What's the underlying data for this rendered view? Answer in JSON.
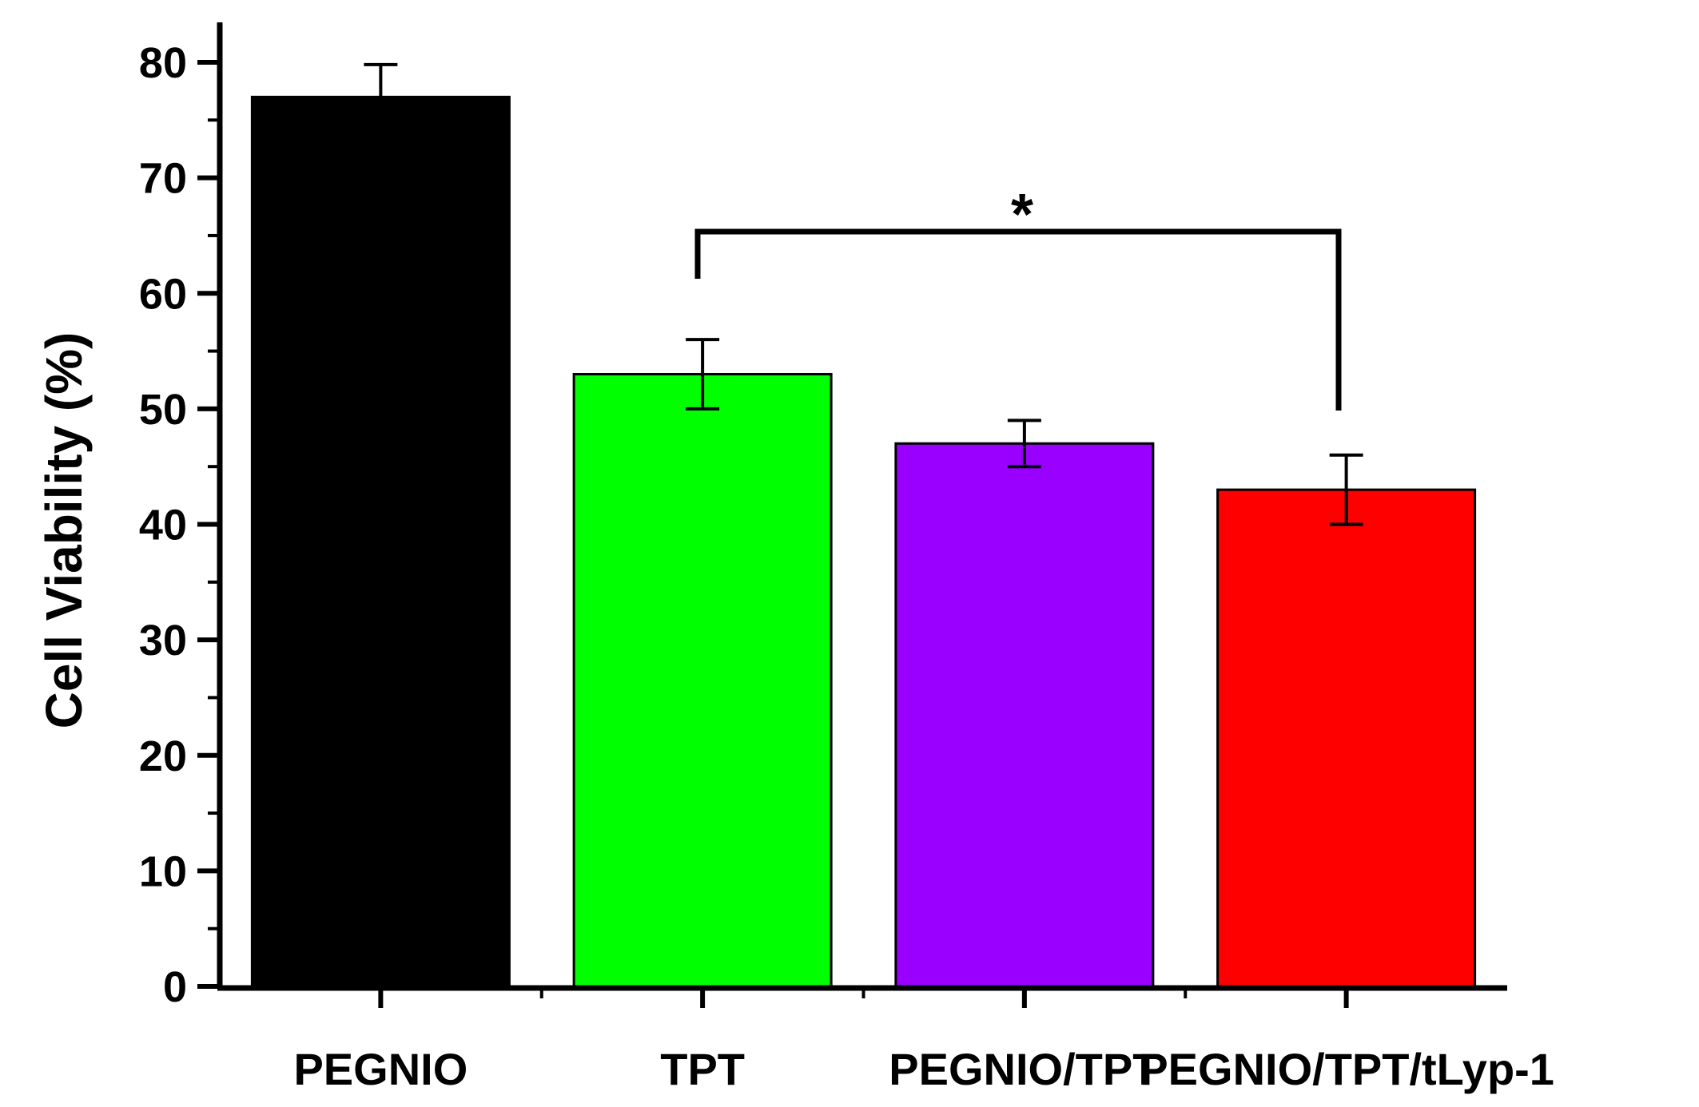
{
  "chart_data": {
    "type": "bar",
    "title": "",
    "xlabel": "",
    "ylabel": "Cell Viability (%)",
    "ylim": [
      0,
      80
    ],
    "yticks": [
      0,
      10,
      20,
      30,
      40,
      50,
      60,
      70,
      80
    ],
    "tick_labels": [
      "0",
      "10",
      "20",
      "30",
      "40",
      "50",
      "60",
      "70",
      "80"
    ],
    "categories": [
      "PEGNIO",
      "TPT",
      "PEGNIO/TPT",
      "PEGNIO/TPT/tLyp-1"
    ],
    "values": [
      77,
      53,
      47,
      43
    ],
    "errors": [
      2.8,
      3,
      2,
      3
    ],
    "bar_colors": [
      "#000000",
      "#00ff00",
      "#9900ff",
      "#ff0000"
    ],
    "significance": {
      "from": "TPT",
      "to": "PEGNIO/TPT/tLyp-1",
      "label": "*"
    }
  }
}
